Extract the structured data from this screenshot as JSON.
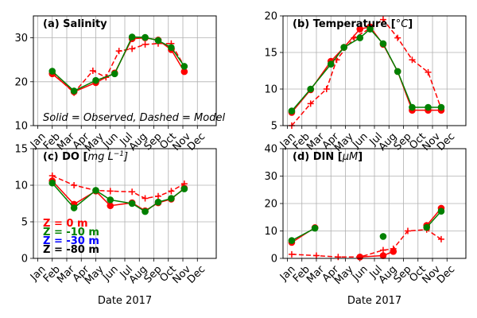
{
  "months": [
    "Jan",
    "Feb",
    "Mar",
    "Apr",
    "May",
    "Jun",
    "Jul",
    "Aug",
    "Sep",
    "Oct",
    "Nov",
    "Dec"
  ],
  "colors": {
    "obs_surface": "#ff0000",
    "obs_mid": "#008000",
    "model_surface": "#ff0000"
  },
  "legend": [
    {
      "label": "Z =    0 m",
      "color": "#ff0000"
    },
    {
      "label": "Z =  -10 m",
      "color": "#008000"
    },
    {
      "label": "Z =  -30 m",
      "color": "#0000ff"
    },
    {
      "label": "Z =  -80 m",
      "color": "#000000"
    }
  ],
  "chart_data": [
    {
      "type": "line",
      "title_parts": [
        "(a) Salinity"
      ],
      "note": "Solid = Observed, Dashed = Model",
      "xlabel": "",
      "ylim": [
        10,
        35
      ],
      "yticks": [
        10,
        20,
        30
      ],
      "series": [
        {
          "depth": "0 m",
          "style": "dashed",
          "marker": "plus",
          "color": "#ff0000",
          "x": [
            2.0,
            3.5,
            4.8,
            5.7,
            6.6,
            7.5,
            8.4,
            9.3,
            10.2,
            11.1
          ],
          "y": [
            22,
            17.5,
            22.5,
            21,
            27,
            27.5,
            28.5,
            28.7,
            28.7,
            23.5
          ]
        },
        {
          "depth": "0 m",
          "style": "solid",
          "marker": "circle",
          "color": "#ff0000",
          "x": [
            2.0,
            3.5,
            5.0,
            6.3,
            7.5,
            8.4,
            9.3,
            10.2,
            11.1
          ],
          "y": [
            21.8,
            17.7,
            19.8,
            22,
            29.8,
            30,
            29.5,
            27.3,
            22.3
          ]
        },
        {
          "depth": "-10 m",
          "style": "solid",
          "marker": "circle",
          "color": "#008000",
          "x": [
            2.0,
            3.5,
            5.0,
            6.3,
            7.5,
            8.4,
            9.3,
            10.2,
            11.1
          ],
          "y": [
            22.4,
            17.9,
            20.3,
            21.8,
            30.2,
            30.1,
            29.4,
            27.8,
            23.5
          ]
        }
      ]
    },
    {
      "type": "line",
      "title_parts": [
        "(b) Temperature [",
        "°C",
        "]"
      ],
      "xlabel": "",
      "ylim": [
        5,
        20
      ],
      "yticks": [
        5,
        10,
        15,
        20
      ],
      "series": [
        {
          "depth": "0 m",
          "style": "dashed",
          "marker": "plus",
          "color": "#ff0000",
          "x": [
            1.3,
            2.6,
            3.7,
            4.4,
            5.6,
            6.7,
            7.6,
            8.6,
            9.6,
            10.7,
            11.6
          ],
          "y": [
            5.0,
            8.0,
            10.0,
            14.0,
            17.0,
            18.3,
            19.5,
            17.0,
            14.0,
            12.3,
            7.3
          ]
        },
        {
          "depth": "0 m",
          "style": "solid",
          "marker": "circle",
          "color": "#ff0000",
          "x": [
            1.3,
            2.6,
            4.0,
            4.9,
            6.0,
            6.7,
            7.6,
            8.6,
            9.6,
            10.7,
            11.6
          ],
          "y": [
            6.8,
            9.9,
            13.8,
            15.7,
            18.2,
            18.5,
            16.1,
            12.4,
            7.1,
            7.1,
            7.1
          ]
        },
        {
          "depth": "-10 m",
          "style": "solid",
          "marker": "circle",
          "color": "#008000",
          "x": [
            1.3,
            2.6,
            4.0,
            4.9,
            6.0,
            6.7,
            7.6,
            8.6,
            9.6,
            10.7,
            11.6
          ],
          "y": [
            7.0,
            10.0,
            13.4,
            15.7,
            17.0,
            18.2,
            16.2,
            12.4,
            7.5,
            7.5,
            7.5
          ]
        }
      ]
    },
    {
      "type": "line",
      "title_parts": [
        "(c) DO [",
        "mg L",
        "−1",
        "]"
      ],
      "xlabel": "Date 2017",
      "ylim": [
        0,
        15
      ],
      "yticks": [
        0,
        5,
        10,
        15
      ],
      "series": [
        {
          "depth": "0 m",
          "style": "dashed",
          "marker": "plus",
          "color": "#ff0000",
          "x": [
            2.0,
            3.5,
            5.0,
            6.0,
            7.5,
            8.4,
            9.3,
            10.2,
            11.1
          ],
          "y": [
            11.3,
            10.0,
            9.3,
            9.2,
            9.1,
            8.2,
            8.5,
            9.2,
            10.2
          ]
        },
        {
          "depth": "0 m",
          "style": "solid",
          "marker": "circle",
          "color": "#ff0000",
          "x": [
            2.0,
            3.5,
            5.0,
            6.0,
            7.5,
            8.4,
            9.3,
            10.2,
            11.1
          ],
          "y": [
            10.6,
            7.4,
            9.2,
            7.2,
            7.6,
            6.5,
            7.6,
            8.1,
            9.6
          ]
        },
        {
          "depth": "-10 m",
          "style": "solid",
          "marker": "circle",
          "color": "#008000",
          "x": [
            2.0,
            3.5,
            5.0,
            6.0,
            7.5,
            8.4,
            9.3,
            10.2,
            11.1
          ],
          "y": [
            10.3,
            6.9,
            9.3,
            8.0,
            7.5,
            6.4,
            7.7,
            8.2,
            9.5
          ]
        }
      ]
    },
    {
      "type": "line",
      "title_parts": [
        "(d) DIN  [",
        "μM",
        "]"
      ],
      "xlabel": "Date 2017",
      "ylim": [
        0,
        40
      ],
      "yticks": [
        0,
        10,
        20,
        30,
        40
      ],
      "series": [
        {
          "depth": "0 m",
          "style": "dashed",
          "marker": "plus",
          "color": "#ff0000",
          "x": [
            1.3,
            3.0,
            4.5,
            6.0,
            7.6,
            8.3,
            9.3,
            10.6,
            11.6
          ],
          "y": [
            1.5,
            1.0,
            0.5,
            0.5,
            3.0,
            3.5,
            10.0,
            10.5,
            7.0
          ]
        },
        {
          "depth": "0 m",
          "style": "solid",
          "marker": "circle",
          "color": "#ff0000",
          "x": [
            1.3,
            2.9,
            null,
            6.0,
            7.6,
            8.3,
            null,
            10.6,
            11.6
          ],
          "y": [
            5.8,
            11.2,
            null,
            0.5,
            1.0,
            2.5,
            null,
            12.0,
            18.3
          ]
        },
        {
          "depth": "-10 m",
          "style": "solid",
          "marker": "circle",
          "color": "#008000",
          "x": [
            1.3,
            2.9,
            null,
            7.6,
            null,
            10.6,
            11.6
          ],
          "y": [
            6.5,
            11.0,
            null,
            8.0,
            null,
            11.3,
            17.2
          ]
        }
      ]
    }
  ]
}
